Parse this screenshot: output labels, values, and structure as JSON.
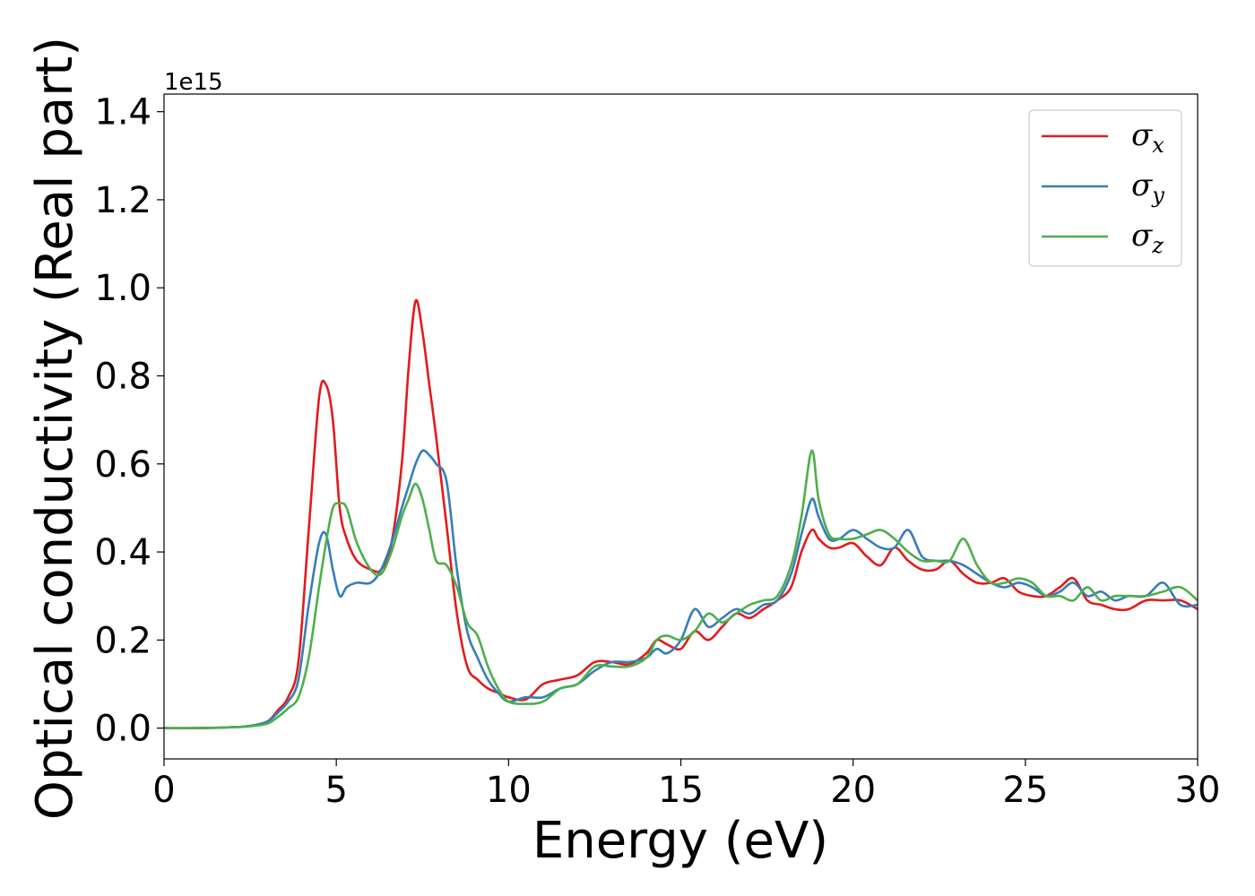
{
  "chart_data": {
    "type": "line",
    "xlabel": "Energy (eV)",
    "ylabel": "Optical conductivity (Real part)",
    "y_offset_label": "1e15",
    "xlim": [
      0,
      30
    ],
    "ylim": [
      -0.07,
      1.44
    ],
    "xticks": [
      0,
      5,
      10,
      15,
      20,
      25,
      30
    ],
    "xtick_labels": [
      "0",
      "5",
      "10",
      "15",
      "20",
      "25",
      "30"
    ],
    "yticks": [
      0.0,
      0.2,
      0.4,
      0.6,
      0.8,
      1.0,
      1.2,
      1.4
    ],
    "ytick_labels": [
      "0.0",
      "0.2",
      "0.4",
      "0.6",
      "0.8",
      "1.0",
      "1.2",
      "1.4"
    ],
    "grid": false,
    "legend_position": "top-right",
    "series": [
      {
        "name": "σx",
        "symbol": "σ",
        "subscript": "x",
        "color": "#e41a1c",
        "x": [
          0,
          1,
          2,
          2.5,
          3,
          3.3,
          3.6,
          3.9,
          4.2,
          4.5,
          4.7,
          4.9,
          5.1,
          5.3,
          5.6,
          6.0,
          6.3,
          6.6,
          6.9,
          7.1,
          7.3,
          7.5,
          7.7,
          7.9,
          8.2,
          8.5,
          8.8,
          9.1,
          9.4,
          9.7,
          10,
          10.5,
          11,
          11.5,
          12,
          12.5,
          13,
          13.5,
          14,
          14.3,
          14.6,
          15,
          15.4,
          15.8,
          16.2,
          16.6,
          17,
          17.4,
          17.8,
          18.2,
          18.5,
          18.8,
          19,
          19.3,
          19.6,
          20,
          20.4,
          20.8,
          21.2,
          21.6,
          22,
          22.4,
          22.8,
          23.2,
          23.6,
          24,
          24.4,
          24.8,
          25.2,
          25.6,
          26,
          26.4,
          26.8,
          27.2,
          27.6,
          28,
          28.5,
          29,
          29.5,
          30
        ],
        "y": [
          0.0,
          0.0,
          0.002,
          0.005,
          0.015,
          0.04,
          0.07,
          0.15,
          0.45,
          0.75,
          0.78,
          0.7,
          0.5,
          0.43,
          0.38,
          0.36,
          0.36,
          0.42,
          0.6,
          0.82,
          0.97,
          0.9,
          0.78,
          0.66,
          0.46,
          0.26,
          0.14,
          0.11,
          0.09,
          0.08,
          0.07,
          0.065,
          0.1,
          0.11,
          0.12,
          0.15,
          0.15,
          0.145,
          0.17,
          0.2,
          0.19,
          0.18,
          0.22,
          0.2,
          0.23,
          0.26,
          0.25,
          0.27,
          0.29,
          0.32,
          0.4,
          0.45,
          0.43,
          0.41,
          0.41,
          0.42,
          0.39,
          0.37,
          0.41,
          0.38,
          0.36,
          0.36,
          0.38,
          0.35,
          0.33,
          0.33,
          0.34,
          0.31,
          0.3,
          0.3,
          0.32,
          0.34,
          0.29,
          0.28,
          0.27,
          0.27,
          0.29,
          0.29,
          0.29,
          0.27
        ]
      },
      {
        "name": "σy",
        "symbol": "σ",
        "subscript": "y",
        "color": "#377eb8",
        "x": [
          0,
          1,
          2,
          2.5,
          3,
          3.3,
          3.6,
          3.9,
          4.2,
          4.5,
          4.7,
          4.9,
          5.1,
          5.3,
          5.6,
          6.0,
          6.3,
          6.6,
          6.9,
          7.1,
          7.3,
          7.5,
          7.7,
          7.9,
          8.2,
          8.5,
          8.8,
          9.1,
          9.4,
          9.7,
          10,
          10.5,
          11,
          11.5,
          12,
          12.5,
          13,
          13.5,
          14,
          14.3,
          14.6,
          15,
          15.4,
          15.8,
          16.2,
          16.6,
          17,
          17.4,
          17.8,
          18.2,
          18.5,
          18.8,
          19,
          19.3,
          19.6,
          20,
          20.4,
          20.8,
          21.2,
          21.6,
          22,
          22.4,
          22.8,
          23.2,
          23.6,
          24,
          24.4,
          24.8,
          25.2,
          25.6,
          26,
          26.4,
          26.8,
          27.2,
          27.6,
          28,
          28.5,
          29,
          29.5,
          30
        ],
        "y": [
          0.0,
          0.0,
          0.002,
          0.005,
          0.015,
          0.035,
          0.06,
          0.11,
          0.28,
          0.42,
          0.44,
          0.36,
          0.3,
          0.32,
          0.33,
          0.33,
          0.36,
          0.42,
          0.5,
          0.55,
          0.6,
          0.63,
          0.62,
          0.6,
          0.56,
          0.36,
          0.22,
          0.16,
          0.11,
          0.08,
          0.06,
          0.07,
          0.07,
          0.09,
          0.1,
          0.13,
          0.15,
          0.15,
          0.16,
          0.18,
          0.17,
          0.2,
          0.27,
          0.23,
          0.25,
          0.27,
          0.26,
          0.28,
          0.29,
          0.35,
          0.44,
          0.52,
          0.48,
          0.43,
          0.43,
          0.45,
          0.43,
          0.41,
          0.41,
          0.45,
          0.39,
          0.38,
          0.38,
          0.37,
          0.35,
          0.33,
          0.32,
          0.33,
          0.32,
          0.3,
          0.31,
          0.33,
          0.3,
          0.31,
          0.29,
          0.3,
          0.3,
          0.33,
          0.28,
          0.28
        ]
      },
      {
        "name": "σz",
        "symbol": "σ",
        "subscript": "z",
        "color": "#4daf4a",
        "x": [
          0,
          1,
          2,
          2.5,
          3,
          3.3,
          3.6,
          3.9,
          4.2,
          4.5,
          4.7,
          4.9,
          5.1,
          5.3,
          5.6,
          6.0,
          6.3,
          6.6,
          6.9,
          7.1,
          7.3,
          7.5,
          7.7,
          7.9,
          8.2,
          8.5,
          8.8,
          9.1,
          9.4,
          9.7,
          10,
          10.5,
          11,
          11.5,
          12,
          12.5,
          13,
          13.5,
          14,
          14.3,
          14.6,
          15,
          15.4,
          15.8,
          16.2,
          16.6,
          17,
          17.4,
          17.8,
          18.2,
          18.5,
          18.8,
          19,
          19.3,
          19.6,
          20,
          20.4,
          20.8,
          21.2,
          21.6,
          22,
          22.4,
          22.8,
          23.2,
          23.6,
          24,
          24.4,
          24.8,
          25.2,
          25.6,
          26,
          26.4,
          26.8,
          27.2,
          27.6,
          28,
          28.5,
          29,
          29.5,
          30
        ],
        "y": [
          0.0,
          0.0,
          0.002,
          0.004,
          0.01,
          0.025,
          0.045,
          0.07,
          0.16,
          0.32,
          0.42,
          0.5,
          0.51,
          0.5,
          0.42,
          0.36,
          0.35,
          0.4,
          0.48,
          0.52,
          0.555,
          0.52,
          0.45,
          0.38,
          0.37,
          0.32,
          0.24,
          0.21,
          0.14,
          0.09,
          0.06,
          0.055,
          0.06,
          0.09,
          0.1,
          0.14,
          0.14,
          0.14,
          0.16,
          0.2,
          0.21,
          0.2,
          0.22,
          0.26,
          0.24,
          0.26,
          0.28,
          0.29,
          0.3,
          0.37,
          0.48,
          0.63,
          0.52,
          0.44,
          0.43,
          0.43,
          0.44,
          0.45,
          0.43,
          0.4,
          0.38,
          0.38,
          0.38,
          0.43,
          0.37,
          0.33,
          0.33,
          0.34,
          0.33,
          0.3,
          0.3,
          0.29,
          0.32,
          0.29,
          0.3,
          0.3,
          0.3,
          0.31,
          0.32,
          0.29
        ]
      }
    ]
  }
}
